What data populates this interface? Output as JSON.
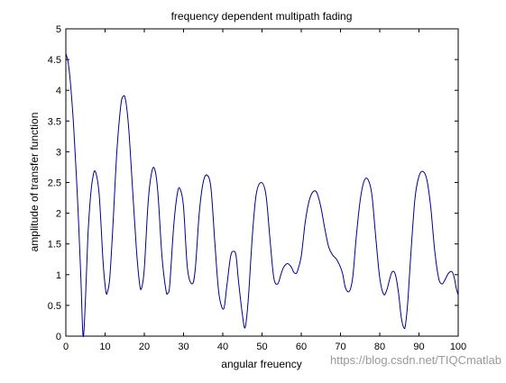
{
  "chart_data": {
    "type": "line",
    "title": "frequency dependent multipath fading",
    "xlabel": "angular freuency",
    "ylabel": "amplitude of transfer function",
    "xlim": [
      0,
      100
    ],
    "ylim": [
      0,
      5
    ],
    "xticks": [
      "0",
      "10",
      "20",
      "30",
      "40",
      "50",
      "60",
      "70",
      "80",
      "90",
      "100"
    ],
    "yticks": [
      "0",
      "0.5",
      "1",
      "1.5",
      "2",
      "2.5",
      "3",
      "3.5",
      "4",
      "4.5",
      "5"
    ],
    "grid": false,
    "line_color": "#00008b",
    "series": [
      {
        "x": [
          0,
          0.6,
          1.2,
          2,
          3,
          3.8,
          4.4,
          5,
          5.6,
          6.2,
          6.8,
          7.5,
          8.5,
          9.5,
          10.2,
          10.6,
          11.2,
          12,
          13,
          14,
          14.6,
          15.2,
          16,
          17,
          18,
          18.8,
          19.3,
          20,
          21,
          22,
          22.8,
          23.5,
          24.5,
          25.5,
          26,
          26.5,
          27.5,
          28.5,
          29.2,
          30,
          31,
          32.2,
          33,
          34,
          35,
          36,
          37,
          38,
          39,
          40.2,
          41,
          42,
          42.8,
          43.4,
          44,
          45,
          45.7,
          46.5,
          47.5,
          48.5,
          49.8,
          51,
          52,
          53,
          54,
          54.8,
          55.5,
          56.5,
          57.5,
          58,
          58.5,
          59,
          60,
          61,
          62,
          63,
          64,
          65,
          66,
          67,
          68,
          69,
          70,
          70.6,
          71.2,
          72,
          72.6,
          73.2,
          74,
          75,
          76,
          77,
          78,
          79,
          80,
          81,
          81.8,
          82.5,
          83.2,
          84,
          84.8,
          85.5,
          86.2,
          86.6,
          87.2,
          88,
          89,
          90,
          91,
          92,
          93,
          94,
          95,
          95.8,
          96.5,
          97.5,
          98.4,
          99,
          99.5,
          100
        ],
        "y": [
          4.6,
          4.45,
          4.1,
          3.4,
          2.2,
          1.0,
          0.0,
          0.6,
          1.6,
          2.2,
          2.55,
          2.68,
          2.3,
          1.2,
          0.73,
          0.72,
          0.95,
          1.8,
          3.0,
          3.75,
          3.9,
          3.85,
          3.4,
          2.4,
          1.4,
          0.85,
          0.78,
          1.1,
          2.2,
          2.7,
          2.68,
          2.3,
          1.3,
          0.75,
          0.7,
          0.85,
          1.8,
          2.35,
          2.38,
          2.1,
          1.1,
          0.85,
          1.1,
          2.0,
          2.5,
          2.62,
          2.4,
          1.5,
          0.7,
          0.44,
          0.8,
          1.3,
          1.38,
          1.3,
          0.9,
          0.35,
          0.14,
          0.6,
          1.6,
          2.3,
          2.5,
          2.3,
          1.6,
          0.95,
          0.85,
          1.0,
          1.12,
          1.18,
          1.12,
          1.05,
          1.02,
          1.05,
          1.3,
          1.85,
          2.2,
          2.35,
          2.33,
          2.1,
          1.75,
          1.45,
          1.32,
          1.25,
          1.12,
          1.0,
          0.8,
          0.72,
          0.78,
          1.0,
          1.6,
          2.2,
          2.52,
          2.55,
          2.3,
          1.6,
          0.95,
          0.68,
          0.75,
          0.92,
          1.05,
          1.0,
          0.7,
          0.3,
          0.13,
          0.2,
          0.6,
          1.4,
          2.25,
          2.6,
          2.68,
          2.55,
          2.1,
          1.4,
          0.95,
          0.85,
          0.9,
          1.02,
          1.05,
          0.95,
          0.78,
          0.67
        ]
      }
    ]
  },
  "watermark": "https://blog.csdn.net/TIQCmatlab"
}
